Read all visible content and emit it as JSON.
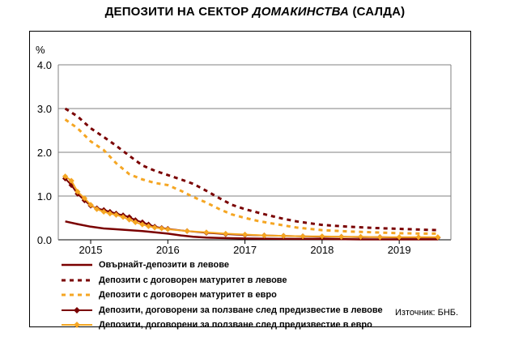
{
  "title": {
    "main": "ДЕПОЗИТИ НА СЕКТОР",
    "italic": "ДОМАКИНСТВА",
    "suffix": "(САЛДА)"
  },
  "source": "Източник: БНБ.",
  "chart_data": {
    "type": "line",
    "title": "ДЕПОЗИТИ НА СЕКТОР ДОМАКИНСТВА (САЛДА)",
    "ylabel": "%",
    "ylim": [
      0,
      4
    ],
    "yticks": [
      "0.0",
      "1.0",
      "2.0",
      "3.0",
      "4.0"
    ],
    "xlabels": [
      "2015",
      "2016",
      "2017",
      "2018",
      "2019"
    ],
    "xlim": [
      2014.58,
      2019.67
    ],
    "grid": true,
    "legend": "bottom",
    "series": [
      {
        "name": "Овърнайт-депозити в левове",
        "color": "#7a0000",
        "style": "solid",
        "x": [
          2014.67,
          2014.83,
          2015.0,
          2015.17,
          2015.33,
          2015.5,
          2015.67,
          2015.83,
          2016.0,
          2016.17,
          2016.33,
          2016.5,
          2016.67,
          2017.0,
          2017.5,
          2018.0,
          2018.5,
          2019.0,
          2019.5
        ],
        "y": [
          0.42,
          0.36,
          0.3,
          0.26,
          0.24,
          0.22,
          0.2,
          0.17,
          0.14,
          0.1,
          0.07,
          0.05,
          0.04,
          0.03,
          0.02,
          0.02,
          0.01,
          0.01,
          0.01
        ]
      },
      {
        "name": "Депозити с договорен матуритет в левове",
        "color": "#7a0000",
        "style": "dotted",
        "x": [
          2014.67,
          2014.83,
          2015.0,
          2015.17,
          2015.33,
          2015.5,
          2015.67,
          2015.83,
          2016.0,
          2016.17,
          2016.33,
          2016.5,
          2016.67,
          2016.83,
          2017.0,
          2017.17,
          2017.33,
          2017.5,
          2017.67,
          2017.83,
          2018.0,
          2018.33,
          2018.67,
          2019.0,
          2019.33,
          2019.5
        ],
        "y": [
          3.0,
          2.82,
          2.55,
          2.35,
          2.15,
          1.92,
          1.7,
          1.58,
          1.48,
          1.38,
          1.28,
          1.12,
          0.95,
          0.8,
          0.7,
          0.62,
          0.55,
          0.48,
          0.42,
          0.38,
          0.34,
          0.3,
          0.27,
          0.25,
          0.23,
          0.22
        ]
      },
      {
        "name": "Депозити с договорен матуритет в евро",
        "color": "#f5a623",
        "style": "dotted",
        "x": [
          2014.67,
          2014.83,
          2015.0,
          2015.17,
          2015.33,
          2015.5,
          2015.67,
          2015.83,
          2016.0,
          2016.17,
          2016.33,
          2016.5,
          2016.67,
          2016.83,
          2017.0,
          2017.17,
          2017.33,
          2017.5,
          2017.67,
          2017.83,
          2018.0,
          2018.33,
          2018.67,
          2019.0,
          2019.33,
          2019.5
        ],
        "y": [
          2.75,
          2.55,
          2.25,
          2.05,
          1.75,
          1.5,
          1.38,
          1.3,
          1.25,
          1.12,
          0.98,
          0.85,
          0.7,
          0.58,
          0.5,
          0.43,
          0.38,
          0.33,
          0.28,
          0.25,
          0.22,
          0.19,
          0.17,
          0.15,
          0.14,
          0.14
        ]
      },
      {
        "name": "Депозити, договорени за ползване след предизвестие в левове",
        "color": "#7a0000",
        "style": "diamond",
        "x": [
          2014.67,
          2014.75,
          2014.83,
          2014.92,
          2015.0,
          2015.08,
          2015.17,
          2015.25,
          2015.33,
          2015.42,
          2015.5,
          2015.58,
          2015.67,
          2015.75,
          2015.83,
          2015.92,
          2016.0,
          2016.25,
          2016.5,
          2016.75,
          2017.0,
          2017.25,
          2017.5,
          2017.75,
          2018.0,
          2018.25,
          2018.5,
          2018.75,
          2019.0,
          2019.25,
          2019.5
        ],
        "y": [
          1.4,
          1.25,
          1.05,
          0.9,
          0.78,
          0.72,
          0.68,
          0.64,
          0.6,
          0.56,
          0.52,
          0.45,
          0.4,
          0.35,
          0.3,
          0.27,
          0.25,
          0.2,
          0.16,
          0.13,
          0.11,
          0.1,
          0.09,
          0.08,
          0.07,
          0.07,
          0.06,
          0.06,
          0.05,
          0.05,
          0.05
        ]
      },
      {
        "name": "Депозити, договорени за ползване след предизвестие в евро",
        "color": "#f5a623",
        "style": "diamond",
        "x": [
          2014.67,
          2014.75,
          2014.83,
          2014.92,
          2015.0,
          2015.08,
          2015.17,
          2015.25,
          2015.33,
          2015.42,
          2015.5,
          2015.58,
          2015.67,
          2015.75,
          2015.83,
          2015.92,
          2016.0,
          2016.25,
          2016.5,
          2016.75,
          2017.0,
          2017.25,
          2017.5,
          2017.75,
          2018.0,
          2018.25,
          2018.5,
          2018.75,
          2019.0,
          2019.25,
          2019.5
        ],
        "y": [
          1.45,
          1.35,
          1.1,
          0.95,
          0.8,
          0.7,
          0.64,
          0.6,
          0.57,
          0.52,
          0.46,
          0.4,
          0.35,
          0.31,
          0.28,
          0.26,
          0.24,
          0.2,
          0.17,
          0.14,
          0.12,
          0.1,
          0.09,
          0.08,
          0.08,
          0.07,
          0.07,
          0.06,
          0.06,
          0.06,
          0.06
        ]
      }
    ]
  }
}
